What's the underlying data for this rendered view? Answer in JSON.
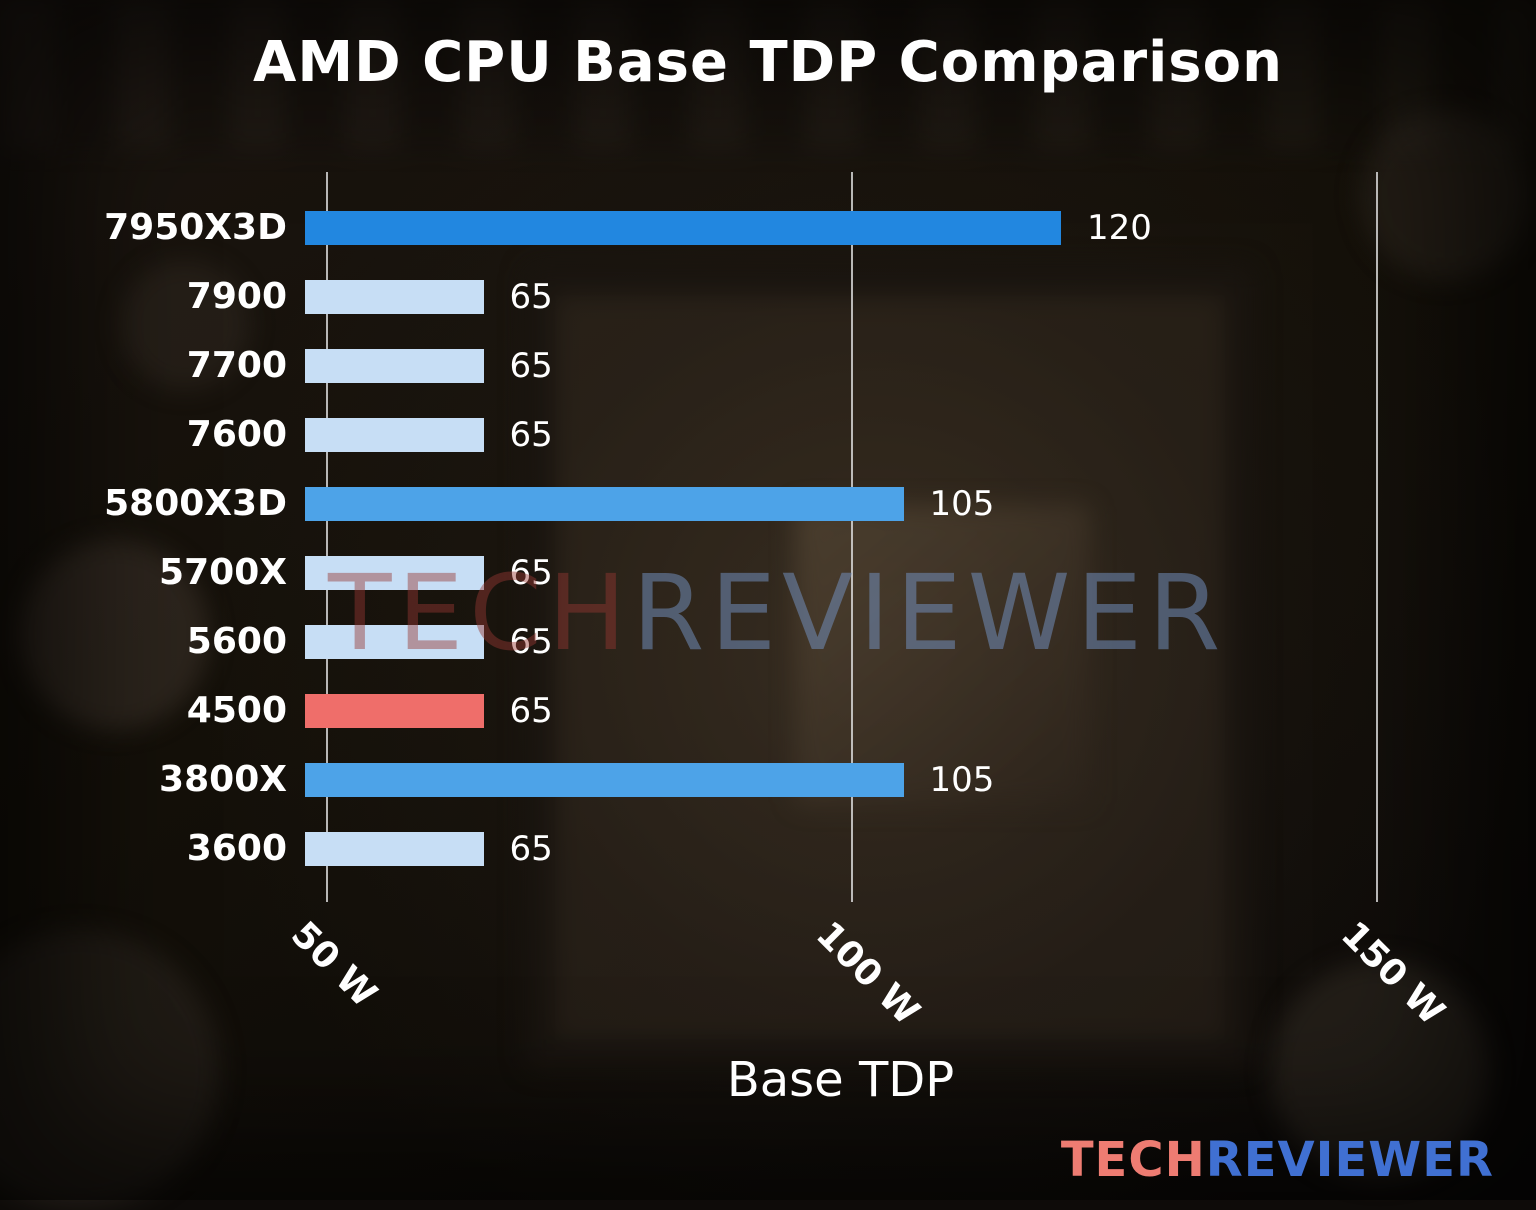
{
  "title": "AMD CPU Base TDP Comparison",
  "watermark": {
    "part1": "TECH",
    "part2": "REVIEWER"
  },
  "logo": {
    "part1": "TECH",
    "part2": "REVIEWER"
  },
  "colors": {
    "highlight_blue": "#2287e0",
    "mid_blue": "#4da3e8",
    "light_blue": "#c7def5",
    "red": "#ef6e6a",
    "text": "#ffffff"
  },
  "chart_data": {
    "type": "bar",
    "orientation": "horizontal",
    "title": "AMD CPU Base TDP Comparison",
    "xlabel": "Base TDP",
    "ylabel": "",
    "unit": "W",
    "categories": [
      "7950X3D",
      "7900",
      "7700",
      "7600",
      "5800X3D",
      "5700X",
      "5600",
      "4500",
      "3800X",
      "3600"
    ],
    "values": [
      120,
      65,
      65,
      65,
      105,
      65,
      65,
      65,
      105,
      65
    ],
    "value_labels": [
      "120",
      "65",
      "65",
      "65",
      "105",
      "65",
      "65",
      "65",
      "105",
      "65"
    ],
    "bar_colors": [
      "#2287e0",
      "#c7def5",
      "#c7def5",
      "#c7def5",
      "#4da3e8",
      "#c7def5",
      "#c7def5",
      "#ef6e6a",
      "#4da3e8",
      "#c7def5"
    ],
    "xlim": [
      48,
      150
    ],
    "xticks": [
      {
        "value": 50,
        "label": "50 W"
      },
      {
        "value": 100,
        "label": "100 W"
      },
      {
        "value": 150,
        "label": "150 W"
      }
    ],
    "grid": true,
    "legend": false
  }
}
